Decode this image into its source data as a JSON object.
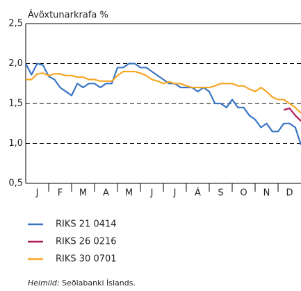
{
  "chart_data": {
    "type": "line",
    "title": "Ávöxtunarkrafa %",
    "categories": [
      "J",
      "F",
      "M",
      "A",
      "M",
      "J",
      "J",
      "Á",
      "S",
      "O",
      "N",
      "D"
    ],
    "xlim": [
      0,
      12
    ],
    "x": [
      0,
      0.25,
      0.5,
      0.75,
      1,
      1.25,
      1.5,
      1.75,
      2,
      2.25,
      2.5,
      2.75,
      3,
      3.25,
      3.5,
      3.75,
      4,
      4.25,
      4.5,
      4.75,
      5,
      5.25,
      5.5,
      5.75,
      6,
      6.25,
      6.5,
      6.75,
      7,
      7.25,
      7.5,
      7.75,
      8,
      8.25,
      8.5,
      8.75,
      9,
      9.25,
      9.5,
      9.75,
      10,
      10.25,
      10.5,
      10.75,
      11,
      11.25,
      11.5,
      11.75,
      12
    ],
    "ylim": [
      0.5,
      2.5
    ],
    "yticks": [
      {
        "value": 0.5,
        "label": "0,5"
      },
      {
        "value": 1.0,
        "label": "1,0"
      },
      {
        "value": 1.5,
        "label": "1,5"
      },
      {
        "value": 2.0,
        "label": "2,0"
      },
      {
        "value": 2.5,
        "label": "2,5"
      }
    ],
    "grid": true,
    "series": [
      {
        "name": "RIKS 21 0414",
        "color": "#3a75c4",
        "values": [
          2.0,
          1.86,
          2.0,
          1.98,
          1.84,
          1.8,
          1.7,
          1.65,
          1.6,
          1.75,
          1.7,
          1.75,
          1.75,
          1.7,
          1.75,
          1.75,
          1.95,
          1.95,
          2.0,
          2.0,
          1.95,
          1.95,
          1.9,
          1.85,
          1.8,
          1.75,
          1.75,
          1.7,
          1.7,
          1.7,
          1.65,
          1.7,
          1.65,
          1.5,
          1.5,
          1.45,
          1.55,
          1.45,
          1.45,
          1.35,
          1.3,
          1.2,
          1.25,
          1.15,
          1.15,
          1.25,
          1.25,
          1.2,
          0.98
        ]
      },
      {
        "name": "RIKS 26 0216",
        "color": "#b0185a",
        "values": [
          null,
          null,
          null,
          null,
          null,
          null,
          null,
          null,
          null,
          null,
          null,
          null,
          null,
          null,
          null,
          null,
          null,
          null,
          null,
          null,
          null,
          null,
          null,
          null,
          null,
          null,
          null,
          null,
          null,
          null,
          null,
          null,
          null,
          null,
          null,
          null,
          null,
          null,
          null,
          null,
          null,
          null,
          null,
          null,
          null,
          1.42,
          1.44,
          1.35,
          1.28
        ]
      },
      {
        "name": "RIKS 30 0701",
        "color": "#f5a623",
        "values": [
          1.8,
          1.8,
          1.87,
          1.88,
          1.85,
          1.87,
          1.87,
          1.85,
          1.85,
          1.83,
          1.83,
          1.8,
          1.8,
          1.78,
          1.78,
          1.78,
          1.85,
          1.9,
          1.9,
          1.9,
          1.88,
          1.85,
          1.8,
          1.78,
          1.75,
          1.77,
          1.75,
          1.75,
          1.72,
          1.7,
          1.7,
          1.7,
          1.7,
          1.72,
          1.75,
          1.75,
          1.75,
          1.72,
          1.72,
          1.68,
          1.65,
          1.7,
          1.65,
          1.58,
          1.55,
          1.55,
          1.5,
          1.45,
          1.38
        ]
      }
    ],
    "source_label": "Heimild:",
    "source": "Seðlabanki Íslands."
  }
}
